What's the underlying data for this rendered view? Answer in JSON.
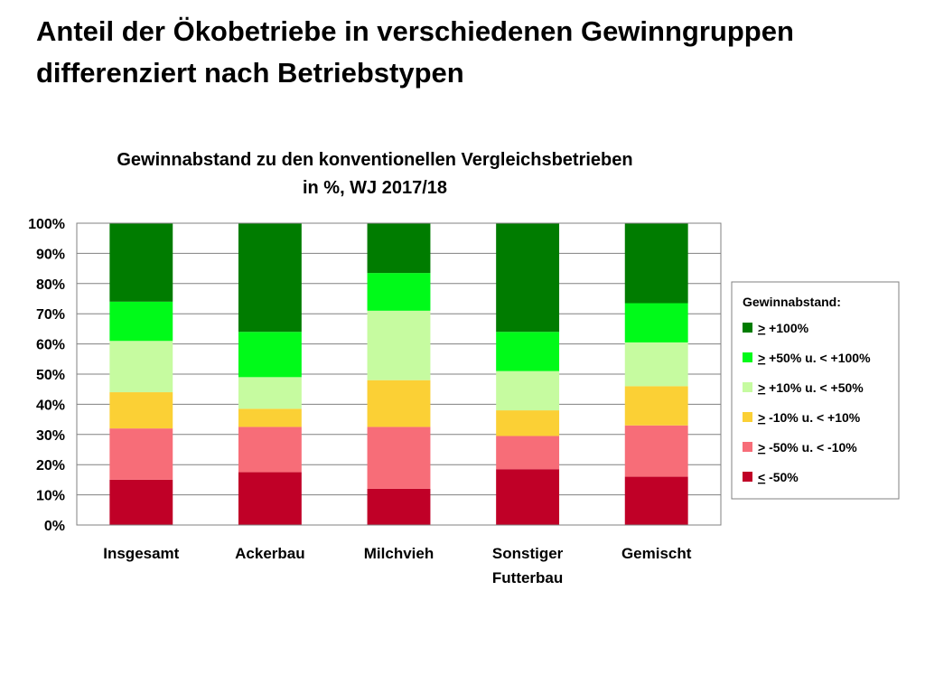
{
  "slide": {
    "title_line1": "Anteil der Ökobetriebe in verschiedenen Gewinngruppen",
    "title_line2": "differenziert nach Betriebstypen"
  },
  "chart_data": {
    "type": "bar",
    "stacked": true,
    "title": "Gewinnabstand zu den konventionellen Vergleichsbetrieben",
    "subtitle": "in %, WJ 2017/18",
    "categories": [
      [
        "Insgesamt"
      ],
      [
        "Ackerbau"
      ],
      [
        "Milchvieh"
      ],
      [
        "Sonstiger",
        "Futterbau"
      ],
      [
        "Gemischt"
      ]
    ],
    "ylim": [
      0,
      100
    ],
    "yticks": [
      "0%",
      "10%",
      "20%",
      "30%",
      "40%",
      "50%",
      "60%",
      "70%",
      "80%",
      "90%",
      "100%"
    ],
    "grid": true,
    "legend": {
      "title": "Gewinnabstand:",
      "placement": "right"
    },
    "series": [
      {
        "name": "< -50%",
        "symbol": "<",
        "rest": " -50%",
        "color": "#c00027",
        "values": [
          15,
          17.5,
          12,
          18.5,
          16
        ]
      },
      {
        "name": "> -50%  u. < -10%",
        "symbol": ">",
        "rest": " -50%  u. < -10%",
        "color": "#f76d78",
        "values": [
          17,
          15,
          20.5,
          11,
          17
        ]
      },
      {
        "name": "> -10%  u. < +10%",
        "symbol": ">",
        "rest": " -10%  u. < +10%",
        "color": "#fbd035",
        "values": [
          12,
          6,
          15.5,
          8.5,
          13
        ]
      },
      {
        "name": "> +10% u. < +50%",
        "symbol": ">",
        "rest": " +10% u. < +50%",
        "color": "#c6fba0",
        "values": [
          17,
          10.5,
          23,
          13,
          14.5
        ]
      },
      {
        "name": "> +50% u. < +100%",
        "symbol": ">",
        "rest": " +50% u. < +100%",
        "color": "#00fa19",
        "values": [
          13,
          15,
          12.5,
          13,
          13
        ]
      },
      {
        "name": "> +100%",
        "symbol": ">",
        "rest": " +100%",
        "color": "#007c00",
        "values": [
          26,
          36,
          16.5,
          36,
          26.5
        ]
      }
    ]
  }
}
